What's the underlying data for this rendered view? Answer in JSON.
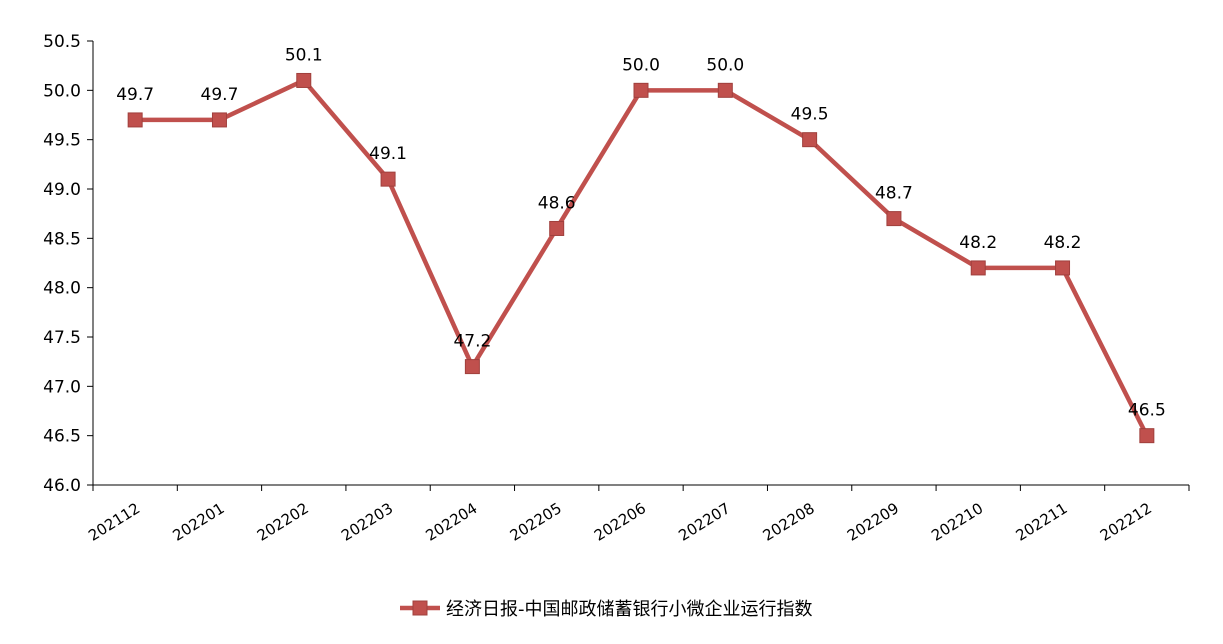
{
  "chart_data": {
    "type": "line",
    "categories": [
      "202112",
      "202201",
      "202202",
      "202203",
      "202204",
      "202205",
      "202206",
      "202207",
      "202208",
      "202209",
      "202210",
      "202211",
      "202212"
    ],
    "series": [
      {
        "name": "经济日报-中国邮政储蓄银行小微企业运行指数",
        "values": [
          49.7,
          49.7,
          50.1,
          49.1,
          47.2,
          48.6,
          50.0,
          50.0,
          49.5,
          48.7,
          48.2,
          48.2,
          46.5
        ],
        "labels": [
          "49.7",
          "49.7",
          "50.1",
          "49.1",
          "47.2",
          "48.6",
          "50.0",
          "50.0",
          "49.5",
          "48.7",
          "48.2",
          "48.2",
          "46.5"
        ],
        "color": "#C0504D",
        "marker": "square"
      }
    ],
    "yticks": [
      "46.0",
      "46.5",
      "47.0",
      "47.5",
      "48.0",
      "48.5",
      "49.0",
      "49.5",
      "50.0",
      "50.5"
    ],
    "ylim": [
      46.0,
      50.5
    ],
    "title": "",
    "xlabel": "",
    "ylabel": "",
    "grid": false,
    "legend_position": "bottom"
  }
}
